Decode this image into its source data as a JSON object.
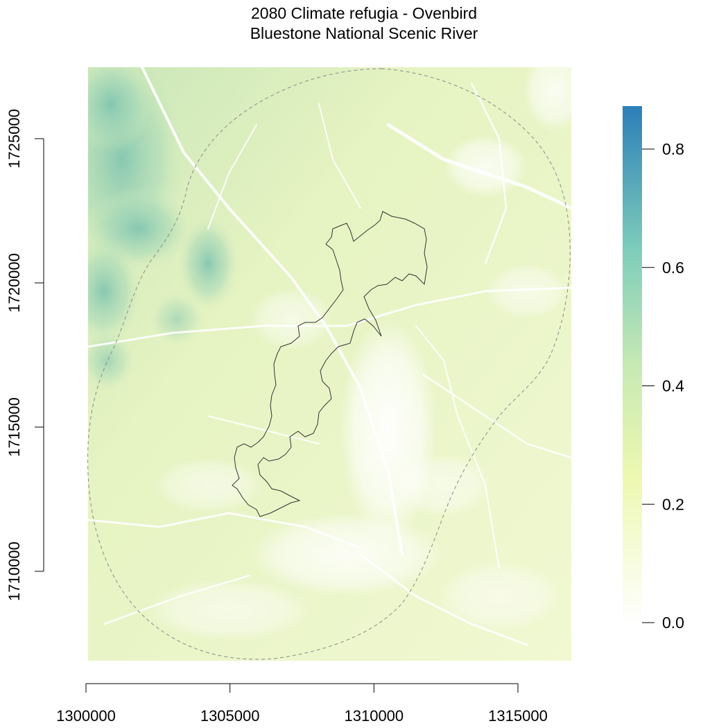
{
  "title": {
    "line1": "2080 Climate refugia - Ovenbird",
    "line2": "Bluestone National Scenic River"
  },
  "map": {
    "type": "raster-map",
    "x_axis": {
      "ticks": [
        "1300000",
        "1305000",
        "1310000",
        "1315000"
      ],
      "tick_values": [
        1300000,
        1305000,
        1310000,
        1315000
      ],
      "range": [
        1300000,
        1315000
      ]
    },
    "y_axis": {
      "ticks": [
        "1710000",
        "1715000",
        "1720000",
        "1725000"
      ],
      "tick_values": [
        1710000,
        1715000,
        1720000,
        1725000
      ],
      "range": [
        1710000,
        1725000
      ]
    },
    "legend": {
      "type": "continuous colorbar",
      "placement": "right",
      "ticks": [
        "0.0",
        "0.2",
        "0.4",
        "0.6",
        "0.8"
      ],
      "tick_values": [
        0.0,
        0.2,
        0.4,
        0.6,
        0.8
      ],
      "range": [
        0.0,
        0.87
      ],
      "colors": {
        "low": "#ffffff",
        "low_mid": "#edf8b1",
        "mid": "#c7e9b4",
        "mid_high": "#7fcdbb",
        "high": "#2c7fb8"
      }
    },
    "layers": {
      "park_boundary": "solid dark outline",
      "buffer_boundary": "dashed grey outline"
    }
  }
}
